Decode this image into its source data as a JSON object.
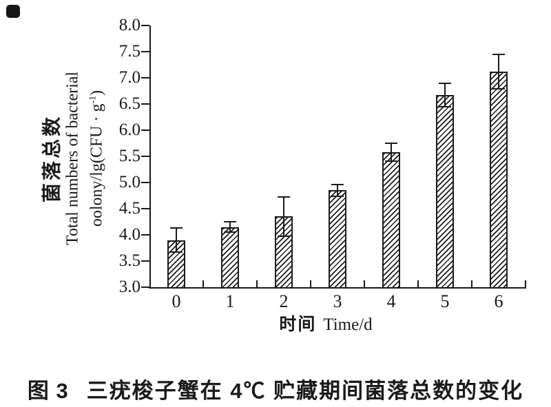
{
  "colors": {
    "ink": "#1a1a1a",
    "background": "#ffffff"
  },
  "chart_data": {
    "type": "bar",
    "categories": [
      "0",
      "1",
      "2",
      "3",
      "4",
      "5",
      "6"
    ],
    "values": [
      3.9,
      4.15,
      4.35,
      4.85,
      5.58,
      6.67,
      7.12
    ],
    "error_bars": [
      0.23,
      0.1,
      0.38,
      0.11,
      0.17,
      0.22,
      0.33
    ],
    "xlabel_zh": "时间",
    "xlabel_en": "Time/d",
    "ylabel_zh": "菌落总数",
    "ylabel_en": "Total numbers of bacterial",
    "ylabel_unit_prefix": "oolony/lg(CFU · g",
    "ylabel_unit_sup": "-1",
    "ylabel_unit_suffix": ")",
    "ylim": [
      3.0,
      8.0
    ],
    "ytick_step": 0.5,
    "ytick_labels": [
      "3.0",
      "3.5",
      "4.0",
      "4.5",
      "5.0",
      "5.5",
      "6.0",
      "6.5",
      "7.0",
      "7.5",
      "8.0"
    ],
    "grid": false,
    "legend": false,
    "bar_fill": "diagonal-hatch"
  },
  "caption": {
    "label": "图 3",
    "text": "三疣梭子蟹在 4℃ 贮藏期间菌落总数的变化"
  }
}
